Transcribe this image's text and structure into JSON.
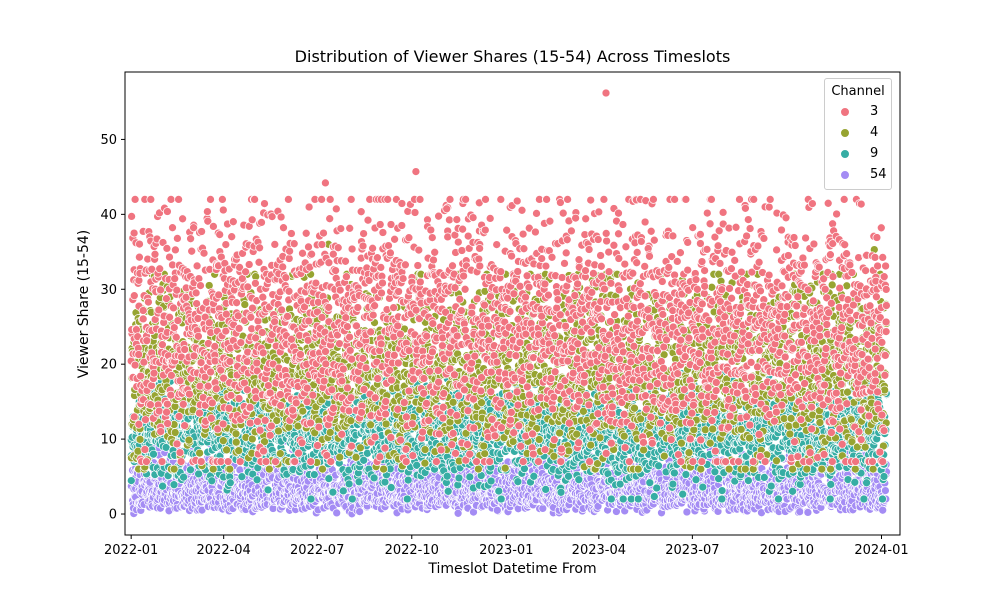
{
  "chart_data": {
    "type": "scatter",
    "title": "Distribution of Viewer Shares (15-54) Across Timeslots",
    "xlabel": "Timeslot Datetime From",
    "ylabel": "Viewer Share (15-54)",
    "x_range": [
      "2021-12-26",
      "2024-01-19"
    ],
    "x_data_range": [
      "2022-01-01",
      "2024-01-05"
    ],
    "xticks": [
      "2022-01",
      "2022-04",
      "2022-07",
      "2022-10",
      "2023-01",
      "2023-04",
      "2023-07",
      "2023-10",
      "2024-01"
    ],
    "ylim": [
      -2.8,
      59
    ],
    "yticks": [
      0,
      10,
      20,
      30,
      40,
      50
    ],
    "grid": false,
    "legend": {
      "title": "Channel",
      "placement": "top-right"
    },
    "series": [
      {
        "name": "3",
        "color": "#f07480",
        "typical_range": [
          10,
          40
        ],
        "outliers": [
          [
            "2023-04-08",
            56.2
          ],
          [
            "2022-10-05",
            45.7
          ],
          [
            "2022-07-09",
            44.2
          ]
        ]
      },
      {
        "name": "4",
        "color": "#97a431",
        "typical_range": [
          9,
          30
        ],
        "outliers": [
          [
            "2022-07-12",
            36.0
          ],
          [
            "2023-12-25",
            35.3
          ]
        ]
      },
      {
        "name": "9",
        "color": "#36ada4",
        "typical_range": [
          5,
          17
        ],
        "outliers": [
          [
            "2023-08-30",
            22.5
          ],
          [
            "2022-03-28",
            21.0
          ]
        ]
      },
      {
        "name": "54",
        "color": "#a48cf4",
        "typical_range": [
          0,
          11
        ],
        "outliers": [
          [
            "2023-10-20",
            13.2
          ],
          [
            "2022-10-30",
            14.0
          ]
        ]
      }
    ]
  }
}
